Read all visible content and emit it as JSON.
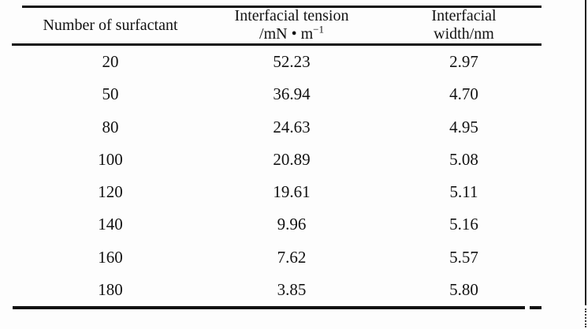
{
  "table": {
    "headers": {
      "col1": "Number of surfactant",
      "col2_line1": "Interfacial tension",
      "col2_unit_base": "/mN • m",
      "col2_unit_exp": "−1",
      "col3_line1": "Interfacial",
      "col3_line2": "width/nm"
    },
    "rows": [
      [
        "20",
        "52.23",
        "2.97"
      ],
      [
        "50",
        "36.94",
        "4.70"
      ],
      [
        "80",
        "24.63",
        "4.95"
      ],
      [
        "100",
        "20.89",
        "5.08"
      ],
      [
        "120",
        "19.61",
        "5.11"
      ],
      [
        "140",
        "9.96",
        "5.16"
      ],
      [
        "160",
        "7.62",
        "5.57"
      ],
      [
        "180",
        "3.85",
        "5.80"
      ]
    ]
  },
  "chart_data": {
    "type": "table",
    "columns": [
      "Number of surfactant",
      "Interfacial tension /mN•m⁻¹",
      "Interfacial width/nm"
    ],
    "rows": [
      [
        20,
        52.23,
        2.97
      ],
      [
        50,
        36.94,
        4.7
      ],
      [
        80,
        24.63,
        4.95
      ],
      [
        100,
        20.89,
        5.08
      ],
      [
        120,
        19.61,
        5.11
      ],
      [
        140,
        9.96,
        5.16
      ],
      [
        160,
        7.62,
        5.57
      ],
      [
        180,
        3.85,
        5.8
      ]
    ]
  }
}
